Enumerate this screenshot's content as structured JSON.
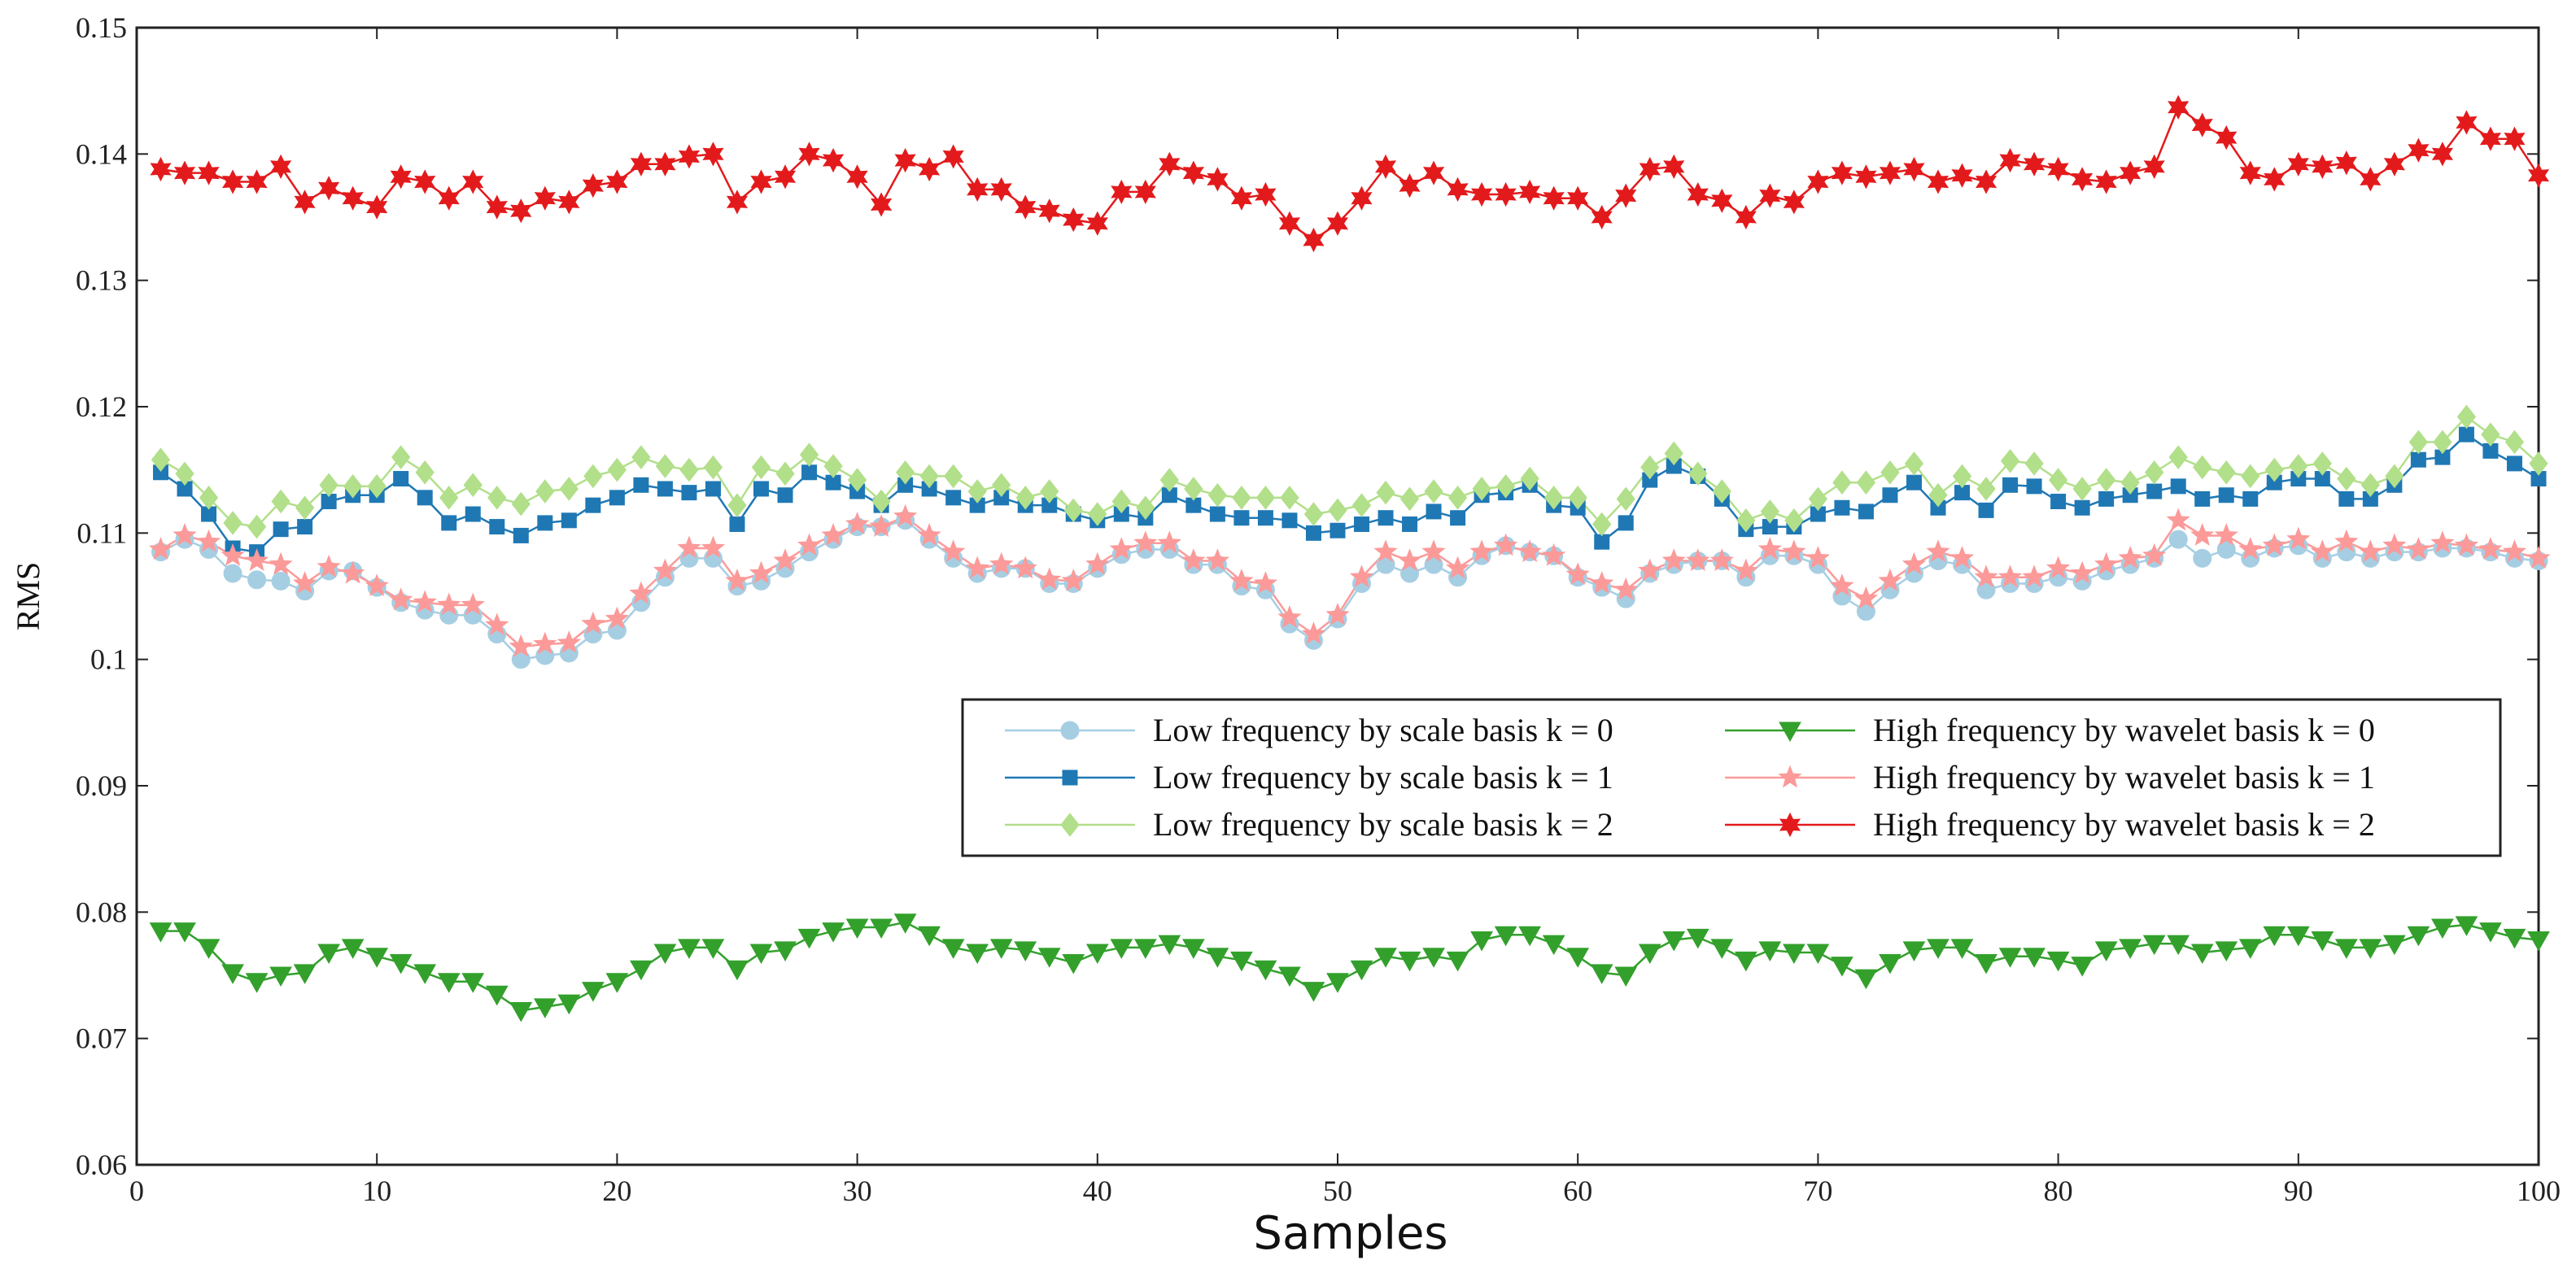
{
  "chart_data": {
    "type": "line",
    "title": "",
    "xlabel": "Samples",
    "ylabel": "RMS",
    "xlim": [
      0,
      100
    ],
    "ylim": [
      0.06,
      0.15
    ],
    "grid": false,
    "legend_position": "center-right",
    "x_ticks": [
      "0",
      "10",
      "20",
      "30",
      "40",
      "50",
      "60",
      "70",
      "80",
      "90",
      "100"
    ],
    "y_ticks": [
      "0.06",
      "0.07",
      "0.08",
      "0.09",
      "0.1",
      "0.11",
      "0.12",
      "0.13",
      "0.14",
      "0.15"
    ],
    "x": [
      1,
      2,
      3,
      4,
      5,
      6,
      7,
      8,
      9,
      10,
      11,
      12,
      13,
      14,
      15,
      16,
      17,
      18,
      19,
      20,
      21,
      22,
      23,
      24,
      25,
      26,
      27,
      28,
      29,
      30,
      31,
      32,
      33,
      34,
      35,
      36,
      37,
      38,
      39,
      40,
      41,
      42,
      43,
      44,
      45,
      46,
      47,
      48,
      49,
      50,
      51,
      52,
      53,
      54,
      55,
      56,
      57,
      58,
      59,
      60,
      61,
      62,
      63,
      64,
      65,
      66,
      67,
      68,
      69,
      70,
      71,
      72,
      73,
      74,
      75,
      76,
      77,
      78,
      79,
      80,
      81,
      82,
      83,
      84,
      85,
      86,
      87,
      88,
      89,
      90,
      91,
      92,
      93,
      94,
      95,
      96,
      97,
      98,
      99,
      100
    ],
    "series": [
      {
        "name": "Low frequency by scale basis k = 0",
        "color": "#a6cee3",
        "marker": "circle",
        "values": [
          0.1085,
          0.1095,
          0.1087,
          0.1068,
          0.1063,
          0.1062,
          0.1054,
          0.107,
          0.107,
          0.1057,
          0.1045,
          0.1039,
          0.1035,
          0.1035,
          0.102,
          0.1,
          0.1003,
          0.1005,
          0.102,
          0.1023,
          0.1045,
          0.1065,
          0.108,
          0.108,
          0.1058,
          0.1062,
          0.1072,
          0.1085,
          0.1095,
          0.1105,
          0.1105,
          0.111,
          0.1095,
          0.108,
          0.1068,
          0.1072,
          0.1072,
          0.106,
          0.106,
          0.1072,
          0.1083,
          0.1087,
          0.1087,
          0.1075,
          0.1075,
          0.1058,
          0.1055,
          0.1028,
          0.1015,
          0.1032,
          0.106,
          0.1075,
          0.1068,
          0.1075,
          0.1065,
          0.1082,
          0.109,
          0.1085,
          0.1082,
          0.1065,
          0.1057,
          0.1048,
          0.1068,
          0.1075,
          0.1078,
          0.1078,
          0.1065,
          0.1082,
          0.1082,
          0.1075,
          0.105,
          0.1038,
          0.1055,
          0.1068,
          0.1078,
          0.1075,
          0.1055,
          0.106,
          0.106,
          0.1065,
          0.1062,
          0.107,
          0.1075,
          0.108,
          0.1095,
          0.108,
          0.1087,
          0.108,
          0.1088,
          0.109,
          0.108,
          0.1085,
          0.108,
          0.1085,
          0.1085,
          0.1088,
          0.1088,
          0.1085,
          0.108,
          0.1078
        ]
      },
      {
        "name": "Low frequency by scale basis k = 1",
        "color": "#1f78b4",
        "marker": "square",
        "values": [
          0.1148,
          0.1135,
          0.1115,
          0.1088,
          0.1085,
          0.1103,
          0.1105,
          0.1125,
          0.113,
          0.113,
          0.1143,
          0.1128,
          0.1108,
          0.1115,
          0.1105,
          0.1098,
          0.1108,
          0.111,
          0.1122,
          0.1128,
          0.1138,
          0.1135,
          0.1132,
          0.1135,
          0.1107,
          0.1135,
          0.113,
          0.1148,
          0.114,
          0.1133,
          0.1122,
          0.1138,
          0.1135,
          0.1128,
          0.1122,
          0.1128,
          0.1122,
          0.1122,
          0.1115,
          0.111,
          0.1115,
          0.1112,
          0.113,
          0.1122,
          0.1115,
          0.1112,
          0.1112,
          0.111,
          0.11,
          0.1102,
          0.1107,
          0.1112,
          0.1107,
          0.1117,
          0.1112,
          0.113,
          0.1132,
          0.1138,
          0.1122,
          0.112,
          0.1093,
          0.1108,
          0.1142,
          0.1153,
          0.1145,
          0.1127,
          0.1103,
          0.1105,
          0.1105,
          0.1115,
          0.112,
          0.1117,
          0.113,
          0.114,
          0.112,
          0.1132,
          0.1118,
          0.1138,
          0.1137,
          0.1125,
          0.112,
          0.1127,
          0.113,
          0.1133,
          0.1137,
          0.1127,
          0.113,
          0.1127,
          0.114,
          0.1143,
          0.1143,
          0.1127,
          0.1127,
          0.1138,
          0.1158,
          0.116,
          0.1178,
          0.1165,
          0.1155,
          0.1143
        ]
      },
      {
        "name": "Low frequency by scale basis k = 2",
        "color": "#b2df8a",
        "marker": "diamond",
        "values": [
          0.1158,
          0.1147,
          0.1128,
          0.1108,
          0.1105,
          0.1125,
          0.112,
          0.1138,
          0.1137,
          0.1137,
          0.116,
          0.1148,
          0.1128,
          0.1138,
          0.1128,
          0.1123,
          0.1133,
          0.1135,
          0.1145,
          0.115,
          0.116,
          0.1153,
          0.115,
          0.1152,
          0.1122,
          0.1152,
          0.1147,
          0.1162,
          0.1153,
          0.1142,
          0.1125,
          0.1148,
          0.1145,
          0.1145,
          0.1133,
          0.1138,
          0.1128,
          0.1133,
          0.1118,
          0.1115,
          0.1125,
          0.112,
          0.1142,
          0.1135,
          0.113,
          0.1128,
          0.1128,
          0.1128,
          0.1115,
          0.1118,
          0.1122,
          0.1132,
          0.1127,
          0.1133,
          0.1128,
          0.1135,
          0.1137,
          0.1143,
          0.1128,
          0.1128,
          0.1107,
          0.1127,
          0.1152,
          0.1163,
          0.1147,
          0.1133,
          0.111,
          0.1117,
          0.111,
          0.1127,
          0.114,
          0.114,
          0.1148,
          0.1155,
          0.113,
          0.1145,
          0.1135,
          0.1157,
          0.1155,
          0.1142,
          0.1135,
          0.1142,
          0.114,
          0.1148,
          0.116,
          0.1152,
          0.1148,
          0.1145,
          0.115,
          0.1153,
          0.1155,
          0.1143,
          0.1138,
          0.1145,
          0.1172,
          0.1172,
          0.1192,
          0.1178,
          0.1172,
          0.1155
        ]
      },
      {
        "name": "High frequency by wavelet basis k = 0",
        "color": "#33a02c",
        "marker": "triangle-down",
        "values": [
          0.0785,
          0.0785,
          0.0772,
          0.0752,
          0.0745,
          0.075,
          0.0752,
          0.0768,
          0.0772,
          0.0765,
          0.076,
          0.0752,
          0.0745,
          0.0745,
          0.0735,
          0.0722,
          0.0725,
          0.0728,
          0.0738,
          0.0745,
          0.0755,
          0.0768,
          0.0772,
          0.0772,
          0.0755,
          0.0768,
          0.077,
          0.078,
          0.0785,
          0.0788,
          0.0788,
          0.0792,
          0.0782,
          0.0772,
          0.0768,
          0.0772,
          0.077,
          0.0765,
          0.076,
          0.0768,
          0.0772,
          0.0772,
          0.0775,
          0.0772,
          0.0765,
          0.0762,
          0.0755,
          0.075,
          0.0738,
          0.0745,
          0.0755,
          0.0765,
          0.0762,
          0.0765,
          0.0762,
          0.0778,
          0.0782,
          0.0782,
          0.0775,
          0.0765,
          0.0752,
          0.075,
          0.0768,
          0.0778,
          0.078,
          0.0772,
          0.0762,
          0.077,
          0.0768,
          0.0768,
          0.0758,
          0.0748,
          0.076,
          0.077,
          0.0772,
          0.0772,
          0.076,
          0.0765,
          0.0765,
          0.0762,
          0.0758,
          0.077,
          0.0772,
          0.0775,
          0.0775,
          0.0768,
          0.077,
          0.0772,
          0.0782,
          0.0782,
          0.0778,
          0.0772,
          0.0772,
          0.0775,
          0.0782,
          0.0788,
          0.079,
          0.0785,
          0.078,
          0.0778
        ]
      },
      {
        "name": "High frequency by wavelet basis k = 1",
        "color": "#fb9a99",
        "marker": "star",
        "values": [
          0.1087,
          0.1098,
          0.1093,
          0.1082,
          0.1078,
          0.1075,
          0.106,
          0.1073,
          0.1068,
          0.1058,
          0.1047,
          0.1045,
          0.1043,
          0.1043,
          0.1027,
          0.101,
          0.1012,
          0.1013,
          0.1028,
          0.1032,
          0.1052,
          0.107,
          0.1088,
          0.1088,
          0.1062,
          0.1068,
          0.1078,
          0.109,
          0.1098,
          0.1107,
          0.1105,
          0.1113,
          0.1098,
          0.1085,
          0.1072,
          0.1075,
          0.1072,
          0.1063,
          0.1062,
          0.1075,
          0.1087,
          0.1092,
          0.1092,
          0.1078,
          0.1078,
          0.1062,
          0.106,
          0.1033,
          0.102,
          0.1035,
          0.1065,
          0.1085,
          0.1078,
          0.1085,
          0.1072,
          0.1085,
          0.109,
          0.1085,
          0.1082,
          0.1067,
          0.106,
          0.1055,
          0.107,
          0.1078,
          0.1078,
          0.1078,
          0.107,
          0.1087,
          0.1085,
          0.108,
          0.1058,
          0.1048,
          0.1062,
          0.1075,
          0.1085,
          0.108,
          0.1065,
          0.1065,
          0.1065,
          0.1072,
          0.1068,
          0.1075,
          0.108,
          0.1082,
          0.111,
          0.1098,
          0.1098,
          0.1087,
          0.109,
          0.1095,
          0.1085,
          0.1093,
          0.1085,
          0.109,
          0.1087,
          0.1092,
          0.109,
          0.1087,
          0.1085,
          0.108
        ]
      },
      {
        "name": "High frequency by wavelet basis k = 2",
        "color": "#e31a1c",
        "marker": "hexagram",
        "values": [
          0.1388,
          0.1385,
          0.1385,
          0.1378,
          0.1378,
          0.139,
          0.1362,
          0.1373,
          0.1365,
          0.1358,
          0.1382,
          0.1378,
          0.1365,
          0.1378,
          0.1358,
          0.1355,
          0.1365,
          0.1362,
          0.1375,
          0.1378,
          0.1392,
          0.1392,
          0.1398,
          0.14,
          0.1362,
          0.1378,
          0.1382,
          0.14,
          0.1395,
          0.1382,
          0.136,
          0.1395,
          0.1388,
          0.1398,
          0.1372,
          0.1372,
          0.1358,
          0.1355,
          0.1348,
          0.1345,
          0.137,
          0.137,
          0.1392,
          0.1385,
          0.138,
          0.1365,
          0.1368,
          0.1345,
          0.1332,
          0.1345,
          0.1365,
          0.139,
          0.1375,
          0.1385,
          0.1372,
          0.1368,
          0.1368,
          0.137,
          0.1365,
          0.1365,
          0.135,
          0.1367,
          0.1388,
          0.139,
          0.1368,
          0.1363,
          0.135,
          0.1367,
          0.1362,
          0.1378,
          0.1385,
          0.1382,
          0.1385,
          0.1388,
          0.1378,
          0.1383,
          0.1378,
          0.1395,
          0.1392,
          0.1388,
          0.138,
          0.1378,
          0.1385,
          0.139,
          0.1437,
          0.1423,
          0.1413,
          0.1385,
          0.138,
          0.1392,
          0.139,
          0.1393,
          0.138,
          0.1392,
          0.1403,
          0.14,
          0.1425,
          0.1412,
          0.1412,
          0.1383
        ]
      }
    ]
  }
}
